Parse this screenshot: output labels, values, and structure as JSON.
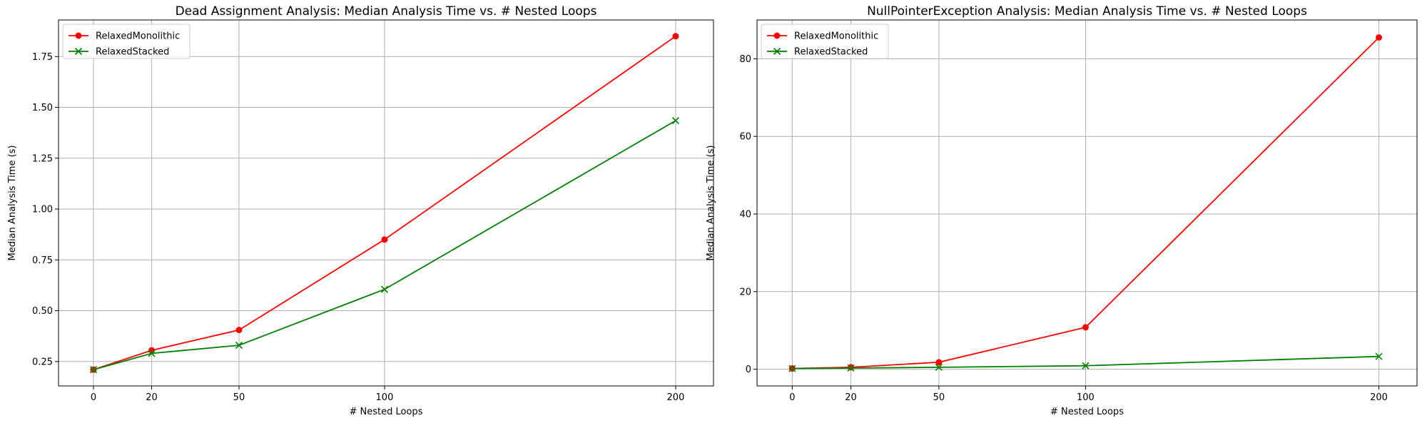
{
  "chart_data": [
    {
      "type": "line",
      "title": "Dead Assignment Analysis: Median Analysis Time vs. # Nested Loops",
      "xlabel": "# Nested Loops",
      "ylabel": "Median Analysis Time (s)",
      "x": [
        0,
        20,
        50,
        100,
        200
      ],
      "xticks": [
        "0",
        "20",
        "50",
        "100",
        "200"
      ],
      "yticks": [
        "0.25",
        "0.50",
        "0.75",
        "1.00",
        "1.25",
        "1.50",
        "1.75"
      ],
      "xlim": [
        -12,
        213
      ],
      "ylim": [
        0.13,
        1.93
      ],
      "grid": true,
      "legend_position": "top-left",
      "series": [
        {
          "name": "RelaxedMonolithic",
          "color": "#ff0000",
          "marker": "circle",
          "values": [
            0.21,
            0.305,
            0.405,
            0.85,
            1.85
          ]
        },
        {
          "name": "RelaxedStacked",
          "color": "#008000",
          "marker": "x",
          "values": [
            0.21,
            0.29,
            0.33,
            0.605,
            1.435
          ]
        }
      ]
    },
    {
      "type": "line",
      "title": "NullPointerException Analysis: Median Analysis Time vs. # Nested Loops",
      "xlabel": "# Nested Loops",
      "ylabel": "Median Analysis Time (s)",
      "x": [
        0,
        20,
        50,
        100,
        200
      ],
      "xticks": [
        "0",
        "20",
        "50",
        "100",
        "200"
      ],
      "yticks": [
        "0",
        "20",
        "40",
        "60",
        "80"
      ],
      "xlim": [
        -12,
        213
      ],
      "ylim": [
        -4.3,
        90
      ],
      "grid": true,
      "legend_position": "top-left",
      "series": [
        {
          "name": "RelaxedMonolithic",
          "color": "#ff0000",
          "marker": "circle",
          "values": [
            0.2,
            0.5,
            1.8,
            10.8,
            85.5
          ]
        },
        {
          "name": "RelaxedStacked",
          "color": "#008000",
          "marker": "x",
          "values": [
            0.2,
            0.3,
            0.5,
            0.9,
            3.3
          ]
        }
      ]
    }
  ]
}
